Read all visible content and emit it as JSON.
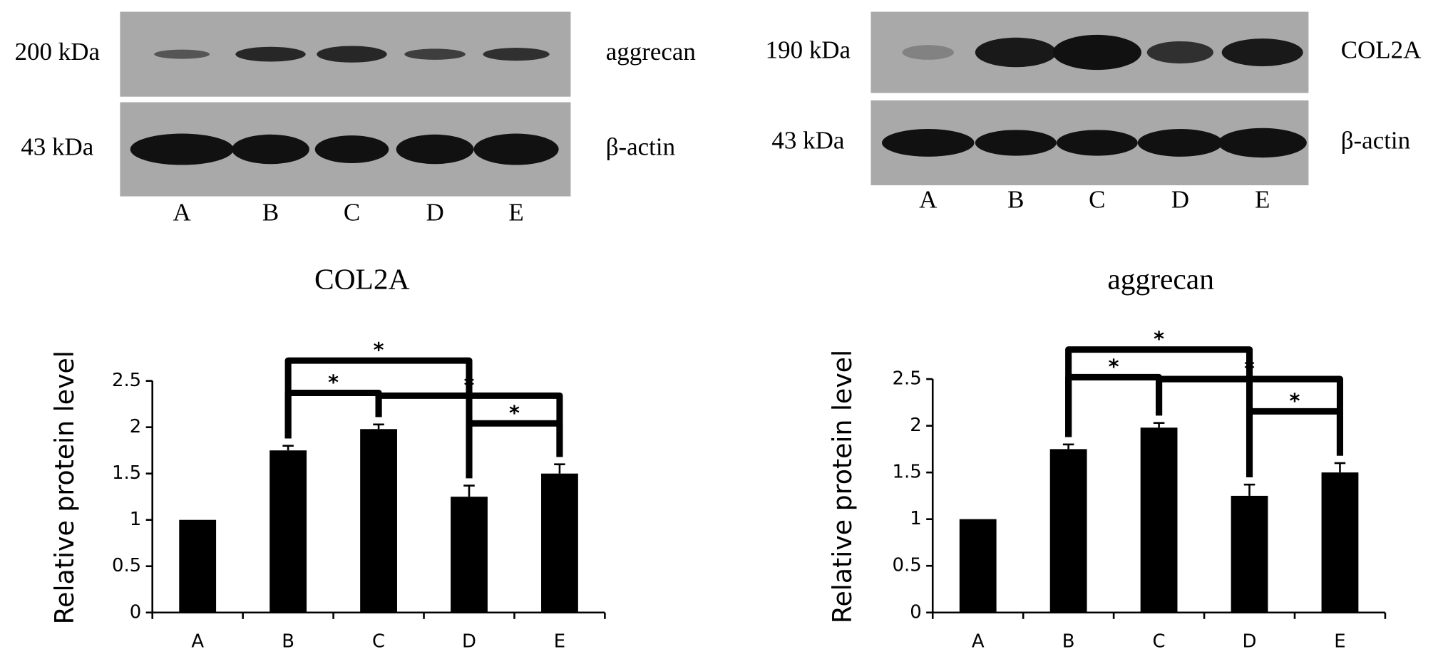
{
  "blots": [
    {
      "marker_top": "200 kDa",
      "marker_bottom": "43 kDa",
      "protein_top": "aggrecan",
      "protein_bottom": "β-actin",
      "lanes": [
        "A",
        "B",
        "C",
        "D",
        "E"
      ]
    },
    {
      "marker_top": "190 kDa",
      "marker_bottom": "43 kDa",
      "protein_top": "COL2A",
      "protein_bottom": "β-actin",
      "lanes": [
        "A",
        "B",
        "C",
        "D",
        "E"
      ]
    }
  ],
  "chart_data": [
    {
      "type": "bar",
      "title": "COL2A",
      "y_label": "Relative protein level",
      "categories": [
        "A",
        "B",
        "C",
        "D",
        "E"
      ],
      "values": [
        1,
        1.75,
        1.98,
        1.25,
        1.5
      ],
      "errors": [
        0,
        0.05,
        0.05,
        0.12,
        0.1
      ],
      "color": "#000000",
      "ylim": [
        0,
        2.5
      ],
      "yticks": [
        0,
        0.5,
        1,
        1.5,
        2,
        2.5
      ],
      "significance": [
        {
          "pair": [
            "B",
            "D"
          ],
          "label": "*"
        },
        {
          "pair": [
            "B",
            "C"
          ],
          "label": "*"
        },
        {
          "pair": [
            "C",
            "E"
          ],
          "label": "*"
        },
        {
          "pair": [
            "D",
            "E"
          ],
          "label": "*"
        }
      ]
    },
    {
      "type": "bar",
      "title": "aggrecan",
      "y_label": "Relative protein level",
      "categories": [
        "A",
        "B",
        "C",
        "D",
        "E"
      ],
      "values": [
        1,
        1.75,
        1.98,
        1.25,
        1.5
      ],
      "errors": [
        0,
        0.05,
        0.05,
        0.12,
        0.1
      ],
      "color": "#000000",
      "ylim": [
        0,
        2.5
      ],
      "yticks": [
        0,
        0.5,
        1,
        1.5,
        2,
        2.5
      ],
      "significance": [
        {
          "pair": [
            "B",
            "D"
          ],
          "label": "*"
        },
        {
          "pair": [
            "B",
            "C"
          ],
          "label": "*"
        },
        {
          "pair": [
            "C",
            "E"
          ],
          "label": "*"
        },
        {
          "pair": [
            "D",
            "E"
          ],
          "label": "*"
        }
      ]
    }
  ]
}
